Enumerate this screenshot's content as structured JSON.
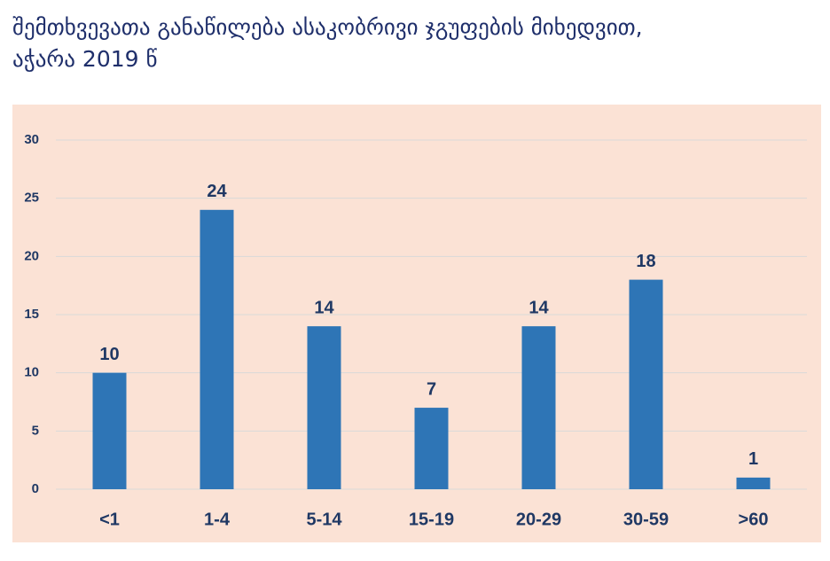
{
  "chart_data": {
    "type": "bar",
    "title": [
      "შემთხვევათა განაწილება ასაკობრივი ჯგუფების მიხედვით,",
      "აჭარა 2019 წ"
    ],
    "categories": [
      "<1",
      "1-4",
      "5-14",
      "15-19",
      "20-29",
      "30-59",
      ">60"
    ],
    "values": [
      10,
      24,
      14,
      7,
      14,
      18,
      1
    ],
    "color": "#2e75b6",
    "ylim": [
      0,
      30
    ],
    "yticks": [
      0,
      5,
      10,
      15,
      20,
      25,
      30
    ],
    "grid": true
  }
}
